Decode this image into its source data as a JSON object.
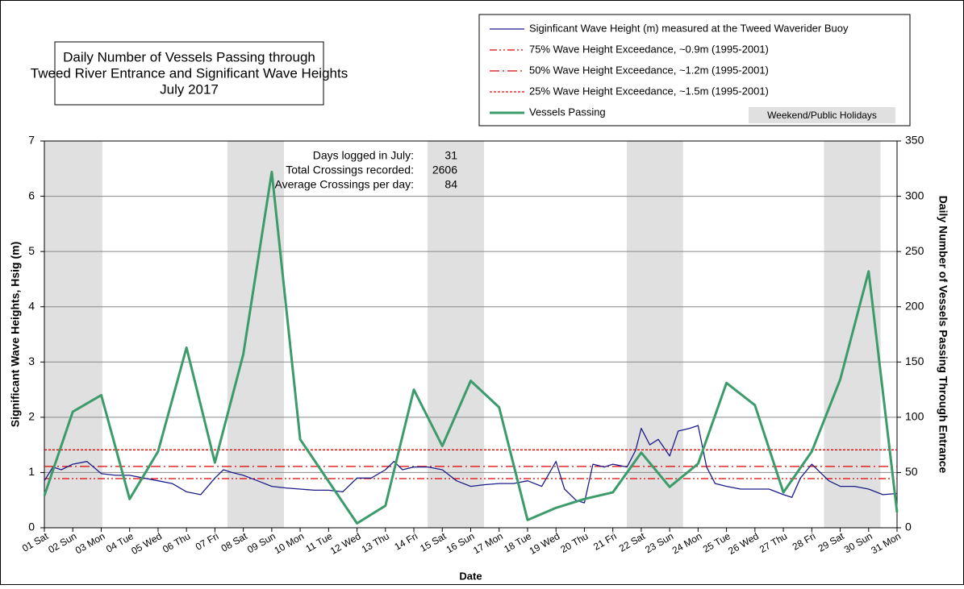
{
  "chart_data": {
    "type": "line",
    "title": [
      "Daily Number of Vessels Passing  through",
      "Tweed River Entrance and Significant Wave Heights",
      "July 2017"
    ],
    "x_label": "Date",
    "y_label": "Significant Wave Heights, Hsig (m)",
    "y2_label": "Daily Number of Vessels Passing Through Entrance",
    "xlim": [
      1,
      31
    ],
    "xticks": [
      {
        "value": 1,
        "label": "01 Sat"
      },
      {
        "value": 2,
        "label": "02 Sun"
      },
      {
        "value": 3,
        "label": "03 Mon"
      },
      {
        "value": 4,
        "label": "04 Tue"
      },
      {
        "value": 5,
        "label": "05 Wed"
      },
      {
        "value": 6,
        "label": "06 Thu"
      },
      {
        "value": 7,
        "label": "07 Fri"
      },
      {
        "value": 8,
        "label": "08 Sat"
      },
      {
        "value": 9,
        "label": "09 Sun"
      },
      {
        "value": 10,
        "label": "10 Mon"
      },
      {
        "value": 11,
        "label": "11 Tue"
      },
      {
        "value": 12,
        "label": "12 Wed"
      },
      {
        "value": 13,
        "label": "13 Thu"
      },
      {
        "value": 14,
        "label": "14 Fri"
      },
      {
        "value": 15,
        "label": "15 Sat"
      },
      {
        "value": 16,
        "label": "16 Sun"
      },
      {
        "value": 17,
        "label": "17 Mon"
      },
      {
        "value": 18,
        "label": "18 Tue"
      },
      {
        "value": 19,
        "label": "19 Wed"
      },
      {
        "value": 20,
        "label": "20 Thu"
      },
      {
        "value": 21,
        "label": "21 Fri"
      },
      {
        "value": 22,
        "label": "22 Sat"
      },
      {
        "value": 23,
        "label": "23 Sun"
      },
      {
        "value": 24,
        "label": "24 Mon"
      },
      {
        "value": 25,
        "label": "25 Tue"
      },
      {
        "value": 26,
        "label": "26 Wed"
      },
      {
        "value": 27,
        "label": "27 Thu"
      },
      {
        "value": 28,
        "label": "28 Fri"
      },
      {
        "value": 29,
        "label": "29 Sat"
      },
      {
        "value": 30,
        "label": "30 Sun"
      },
      {
        "value": 31,
        "label": "31 Mon"
      }
    ],
    "ylim": [
      0,
      7
    ],
    "yticks": [
      0,
      1,
      2,
      3,
      4,
      5,
      6,
      7
    ],
    "y2lim": [
      0,
      350
    ],
    "y2ticks": [
      0,
      50,
      100,
      150,
      200,
      250,
      300,
      350
    ],
    "grid": true,
    "shading": {
      "name": "Weekend/Public Holidays",
      "color": "#e0e0e0",
      "ranges": [
        [
          1,
          3.04
        ],
        [
          7.44,
          9.43
        ],
        [
          14.48,
          16.47
        ],
        [
          21.49,
          23.47
        ],
        [
          28.43,
          30.42
        ]
      ]
    },
    "reference_lines": [
      {
        "name": "75% Wave Height Exceedance, ~0.9m (1995-2001)",
        "value": 0.89,
        "color": "#e00000",
        "dash": "9 3 2 3 2 3"
      },
      {
        "name": "50% Wave Height Exceedance, ~1.2m (1995-2001)",
        "value": 1.11,
        "color": "#e00000",
        "dash": "12 4 2 4"
      },
      {
        "name": "25% Wave Height Exceedance, ~1.5m (1995-2001)",
        "value": 1.41,
        "color": "#e00000",
        "dash": "3 2"
      }
    ],
    "series": [
      {
        "name": "Siginficant Wave Height (m) measured at the Tweed Waverider Buoy",
        "color": "#1c1c8a",
        "axis": "y",
        "x": [
          1,
          1.3,
          1.6,
          2,
          2.5,
          3,
          3.5,
          4,
          4.5,
          5,
          5.5,
          6,
          6.5,
          7,
          7.3,
          7.6,
          8,
          8.5,
          9,
          9.5,
          10,
          10.5,
          11,
          11.5,
          12,
          12.5,
          13,
          13.3,
          13.6,
          14,
          14.5,
          15,
          15.5,
          16,
          16.5,
          17,
          17.5,
          18,
          18.5,
          19,
          19.3,
          19.7,
          20,
          20.3,
          20.7,
          21,
          21.5,
          21.8,
          22,
          22.3,
          22.6,
          23,
          23.3,
          23.7,
          24,
          24.3,
          24.6,
          25,
          25.5,
          26,
          26.5,
          27,
          27.3,
          27.6,
          28,
          28.3,
          28.6,
          29,
          29.5,
          30,
          30.5,
          31
        ],
        "values": [
          0.85,
          1.1,
          1.05,
          1.15,
          1.2,
          0.98,
          0.95,
          0.95,
          0.9,
          0.85,
          0.8,
          0.65,
          0.6,
          0.9,
          1.05,
          1.0,
          0.95,
          0.85,
          0.75,
          0.72,
          0.7,
          0.68,
          0.68,
          0.65,
          0.9,
          0.9,
          1.05,
          1.2,
          1.05,
          1.1,
          1.1,
          1.05,
          0.85,
          0.75,
          0.78,
          0.8,
          0.8,
          0.85,
          0.75,
          1.2,
          0.7,
          0.5,
          0.45,
          1.15,
          1.1,
          1.15,
          1.1,
          1.4,
          1.8,
          1.5,
          1.6,
          1.3,
          1.75,
          1.8,
          1.85,
          1.1,
          0.8,
          0.75,
          0.7,
          0.7,
          0.7,
          0.6,
          0.55,
          0.9,
          1.15,
          1.0,
          0.85,
          0.75,
          0.75,
          0.7,
          0.6,
          0.62
        ]
      },
      {
        "name": "Vessels Passing",
        "color": "#3c9b6a",
        "axis": "y2",
        "x": [
          1,
          2,
          3,
          4,
          5,
          6,
          7,
          8,
          9,
          10,
          11,
          12,
          13,
          14,
          15,
          16,
          17,
          18,
          19,
          20,
          21,
          22,
          23,
          24,
          25,
          26,
          27,
          28,
          29,
          30,
          31
        ],
        "values": [
          29,
          105,
          120,
          26,
          69,
          163,
          59,
          157,
          322,
          80,
          42,
          4,
          20,
          125,
          74,
          133,
          109,
          7,
          18,
          26,
          32,
          68,
          37,
          58,
          131,
          111,
          32,
          69,
          134,
          232,
          14
        ]
      }
    ],
    "stats": [
      {
        "label": "Days logged in July:",
        "value": 31
      },
      {
        "label": "Total Crossings recorded:",
        "value": 2606
      },
      {
        "label": "Average Crossings per day:",
        "value": 84
      }
    ]
  }
}
